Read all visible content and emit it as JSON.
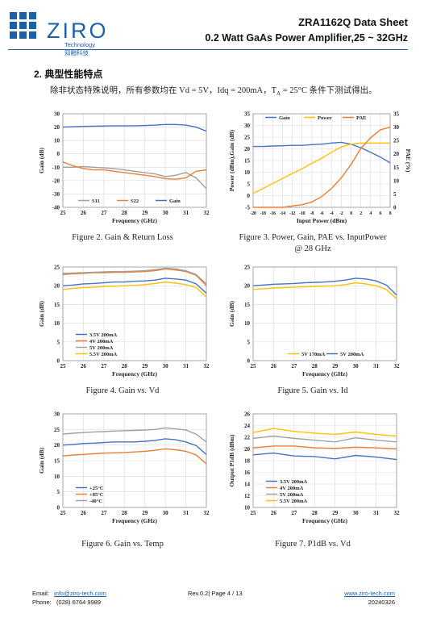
{
  "header": {
    "logo_text": "ZIRO",
    "logo_sub_en": "Technology",
    "logo_sub_cn": "知融科技",
    "title": "ZRA1162Q Data Sheet",
    "subtitle": "0.2 Watt GaAs Power Amplifier,25 ~ 32GHz",
    "brand_color": "#1f5fa8"
  },
  "section": {
    "title": "2.  典型性能特点",
    "intro": "除非状态特殊说明，所有参数均在 Vd = 5V，Idq = 200mA，T",
    "intro_sub": "A",
    "intro_tail": " = 25°C 条件下测试得出。"
  },
  "captions": {
    "fig2": "Figure 2. Gain & Return Loss",
    "fig3_line1": "Figure 3. Power, Gain, PAE vs. InputPower",
    "fig3_line2": "@ 28 GHz",
    "fig4": "Figure 4. Gain vs. Vd",
    "fig5": "Figure 5. Gain vs. Id",
    "fig6": "Figure 6. Gain vs. Temp",
    "fig7": "Figure 7. P1dB vs. Vd"
  },
  "footer": {
    "email_label": "Email:",
    "email": "info@ziro-tech.com",
    "phone_label": "Phone:",
    "phone": "(028) 6764 9989",
    "page": "Rev.0.2| Page 4 / 13",
    "website": "www.ziro-tech.com",
    "date": "20240326"
  },
  "chart_data": [
    {
      "id": "fig2",
      "type": "line",
      "xlabel": "Frequency (GHz)",
      "ylabel": "Gain (dB)",
      "xlim": [
        25,
        32
      ],
      "ylim": [
        -40,
        30
      ],
      "xticks": [
        25,
        26,
        27,
        28,
        29,
        30,
        31,
        32
      ],
      "yticks": [
        -40,
        -30,
        -20,
        -10,
        0,
        10,
        20,
        30
      ],
      "grid": true,
      "legend_position": "bottom",
      "series": [
        {
          "name": "S11",
          "color": "#a0a0a0",
          "x": [
            25,
            25.5,
            26,
            26.5,
            27,
            27.5,
            28,
            28.5,
            29,
            29.5,
            30,
            30.5,
            31,
            31.5,
            32
          ],
          "y": [
            -10,
            -10,
            -9.5,
            -10,
            -10.5,
            -11,
            -12,
            -13,
            -14,
            -15,
            -17,
            -16,
            -14,
            -18,
            -26
          ]
        },
        {
          "name": "S22",
          "color": "#ed7d31",
          "x": [
            25,
            25.5,
            26,
            26.5,
            27,
            27.5,
            28,
            28.5,
            29,
            29.5,
            30,
            30.5,
            31,
            31.5,
            32
          ],
          "y": [
            -6,
            -9,
            -11,
            -12,
            -12,
            -13,
            -14,
            -15,
            -16,
            -17,
            -18.5,
            -19,
            -18,
            -13,
            -12
          ]
        },
        {
          "name": "Gain",
          "color": "#4472c4",
          "x": [
            25,
            25.5,
            26,
            26.5,
            27,
            27.5,
            28,
            28.5,
            29,
            29.5,
            30,
            30.5,
            31,
            31.5,
            32
          ],
          "y": [
            20,
            20.3,
            20.5,
            20.7,
            20.8,
            21,
            21,
            21,
            21.2,
            21.5,
            22,
            22,
            21.5,
            20,
            17
          ]
        }
      ]
    },
    {
      "id": "fig3",
      "type": "line",
      "xlabel": "Input Power (dBm)",
      "ylabel": "Power (dBm),Gain (dB)",
      "y2label": "PAE (%)",
      "xlim": [
        -20,
        8
      ],
      "ylim": [
        -5,
        35
      ],
      "y2lim": [
        0,
        35
      ],
      "xticks": [
        -20,
        -18,
        -16,
        -14,
        -12,
        -10,
        -8,
        -6,
        -4,
        -2,
        0,
        2,
        4,
        6,
        8
      ],
      "yticks": [
        -5,
        0,
        5,
        10,
        15,
        20,
        25,
        30,
        35
      ],
      "y2ticks": [
        0,
        5,
        10,
        15,
        20,
        25,
        30,
        35
      ],
      "grid": true,
      "legend_position": "top",
      "series": [
        {
          "name": "Gain",
          "color": "#4472c4",
          "axis": "left",
          "x": [
            -20,
            -18,
            -16,
            -14,
            -12,
            -10,
            -8,
            -6,
            -4,
            -2,
            0,
            2,
            4,
            6,
            8
          ],
          "y": [
            21,
            21,
            21.2,
            21.3,
            21.5,
            21.5,
            21.8,
            22,
            22.5,
            22.8,
            22,
            20.5,
            18.5,
            16.5,
            14
          ]
        },
        {
          "name": "Power",
          "color": "#ffc000",
          "axis": "left",
          "x": [
            -20,
            -18,
            -16,
            -14,
            -12,
            -10,
            -8,
            -6,
            -4,
            -2,
            0,
            2,
            4,
            6,
            8
          ],
          "y": [
            1,
            3,
            5.2,
            7.3,
            9.5,
            11.5,
            13.8,
            16,
            18.5,
            20.8,
            22,
            22.5,
            22.5,
            22.5,
            22.5
          ]
        },
        {
          "name": "PAE",
          "color": "#ed7d31",
          "axis": "right",
          "x": [
            -20,
            -18,
            -16,
            -14,
            -12,
            -10,
            -8,
            -6,
            -4,
            -2,
            0,
            2,
            4,
            6,
            8
          ],
          "y": [
            0,
            0,
            0,
            0,
            0.5,
            1,
            2,
            4,
            7,
            11,
            16,
            22,
            26,
            29,
            30
          ]
        }
      ]
    },
    {
      "id": "fig4",
      "type": "line",
      "xlabel": "Frequency (GHz)",
      "ylabel": "Gain (dB)",
      "xlim": [
        25,
        32
      ],
      "ylim": [
        0,
        25
      ],
      "xticks": [
        25,
        26,
        27,
        28,
        29,
        30,
        31,
        32
      ],
      "yticks": [
        0,
        5,
        10,
        15,
        20,
        25
      ],
      "grid": true,
      "legend_position": "bottom-left",
      "series": [
        {
          "name": "3.5V 200mA",
          "color": "#4472c4",
          "x": [
            25,
            25.5,
            26,
            26.5,
            27,
            27.5,
            28,
            28.5,
            29,
            29.5,
            30,
            30.5,
            31,
            31.5,
            32
          ],
          "y": [
            20,
            20.2,
            20.5,
            20.6,
            20.8,
            21,
            21,
            21.2,
            21.3,
            21.5,
            22,
            21.8,
            21.5,
            20.5,
            18
          ]
        },
        {
          "name": "4V    200mA",
          "color": "#ed7d31",
          "x": [
            25,
            25.5,
            26,
            26.5,
            27,
            27.5,
            28,
            28.5,
            29,
            29.5,
            30,
            30.5,
            31,
            31.5,
            32
          ],
          "y": [
            23,
            23.2,
            23.3,
            23.5,
            23.5,
            23.6,
            23.6,
            23.7,
            23.8,
            24,
            24.5,
            24.2,
            23.8,
            22.8,
            20
          ]
        },
        {
          "name": "5V    200mA",
          "color": "#a0a0a0",
          "x": [
            25,
            25.5,
            26,
            26.5,
            27,
            27.5,
            28,
            28.5,
            29,
            29.5,
            30,
            30.5,
            31,
            31.5,
            32
          ],
          "y": [
            23.3,
            23.4,
            23.5,
            23.6,
            23.7,
            23.8,
            23.8,
            23.9,
            24,
            24.3,
            24.7,
            24.5,
            24,
            23,
            20.5
          ]
        },
        {
          "name": "5.5V 200mA",
          "color": "#ffc000",
          "x": [
            25,
            25.5,
            26,
            26.5,
            27,
            27.5,
            28,
            28.5,
            29,
            29.5,
            30,
            30.5,
            31,
            31.5,
            32
          ],
          "y": [
            19,
            19.3,
            19.5,
            19.6,
            19.8,
            19.9,
            20,
            20.1,
            20.3,
            20.6,
            21,
            20.7,
            20.3,
            19.5,
            17
          ]
        }
      ]
    },
    {
      "id": "fig5",
      "type": "line",
      "xlabel": "Frequency (GHz)",
      "ylabel": "Gain (dB)",
      "xlim": [
        25,
        32
      ],
      "ylim": [
        0,
        25
      ],
      "xticks": [
        25,
        26,
        27,
        28,
        29,
        30,
        31,
        32
      ],
      "yticks": [
        0,
        5,
        10,
        15,
        20,
        25
      ],
      "grid": true,
      "legend_position": "bottom",
      "series": [
        {
          "name": "5V 170mA",
          "color": "#ffc000",
          "x": [
            25,
            25.5,
            26,
            26.5,
            27,
            27.5,
            28,
            28.5,
            29,
            29.5,
            30,
            30.5,
            31,
            31.5,
            32
          ],
          "y": [
            19,
            19.2,
            19.4,
            19.5,
            19.6,
            19.7,
            19.8,
            19.9,
            20,
            20.3,
            20.8,
            20.5,
            20,
            19,
            16.5
          ]
        },
        {
          "name": "5V 200mA",
          "color": "#4472c4",
          "x": [
            25,
            25.5,
            26,
            26.5,
            27,
            27.5,
            28,
            28.5,
            29,
            29.5,
            30,
            30.5,
            31,
            31.5,
            32
          ],
          "y": [
            20,
            20.2,
            20.4,
            20.5,
            20.6,
            20.8,
            20.9,
            21,
            21.2,
            21.5,
            22,
            21.8,
            21.3,
            20.2,
            17.5
          ]
        }
      ]
    },
    {
      "id": "fig6",
      "type": "line",
      "xlabel": "Frequency (GHz)",
      "ylabel": "Gain (dB)",
      "xlim": [
        25,
        32
      ],
      "ylim": [
        0,
        30
      ],
      "xticks": [
        25,
        26,
        27,
        28,
        29,
        30,
        31,
        32
      ],
      "yticks": [
        0,
        5,
        10,
        15,
        20,
        25,
        30
      ],
      "grid": true,
      "legend_position": "bottom-left",
      "series": [
        {
          "name": "+25°C",
          "color": "#4472c4",
          "x": [
            25,
            25.5,
            26,
            26.5,
            27,
            27.5,
            28,
            28.5,
            29,
            29.5,
            30,
            30.5,
            31,
            31.5,
            32
          ],
          "y": [
            20,
            20.2,
            20.5,
            20.6,
            20.8,
            21,
            21,
            21,
            21.2,
            21.5,
            22,
            21.7,
            21,
            19.8,
            17
          ]
        },
        {
          "name": "+85°C",
          "color": "#ed7d31",
          "x": [
            25,
            25.5,
            26,
            26.5,
            27,
            27.5,
            28,
            28.5,
            29,
            29.5,
            30,
            30.5,
            31,
            31.5,
            32
          ],
          "y": [
            16.5,
            16.8,
            17,
            17.2,
            17.4,
            17.5,
            17.6,
            17.8,
            18,
            18.3,
            18.8,
            18.5,
            18,
            16.8,
            14
          ]
        },
        {
          "name": "-40°C",
          "color": "#a0a0a0",
          "x": [
            25,
            25.5,
            26,
            26.5,
            27,
            27.5,
            28,
            28.5,
            29,
            29.5,
            30,
            30.5,
            31,
            31.5,
            32
          ],
          "y": [
            23.5,
            23.8,
            24,
            24.2,
            24.3,
            24.5,
            24.6,
            24.7,
            24.8,
            25,
            25.5,
            25.2,
            24.8,
            23.5,
            21
          ]
        }
      ]
    },
    {
      "id": "fig7",
      "type": "line",
      "xlabel": "Frequency (GHz)",
      "ylabel": "Output P1dB (dBm)",
      "xlim": [
        25,
        32
      ],
      "ylim": [
        10,
        26
      ],
      "xticks": [
        25,
        26,
        27,
        28,
        29,
        30,
        31,
        32
      ],
      "yticks": [
        10,
        12,
        14,
        16,
        18,
        20,
        22,
        24,
        26
      ],
      "grid": true,
      "legend_position": "bottom-left",
      "series": [
        {
          "name": "3.5V 200mA",
          "color": "#4472c4",
          "x": [
            25,
            26,
            27,
            28,
            29,
            30,
            31,
            32
          ],
          "y": [
            19,
            19.3,
            18.8,
            18.7,
            18.3,
            18.9,
            18.6,
            18.2
          ]
        },
        {
          "name": "4V    200mA",
          "color": "#ed7d31",
          "x": [
            25,
            26,
            27,
            28,
            29,
            30,
            31,
            32
          ],
          "y": [
            20.2,
            20.5,
            20.5,
            20.2,
            20.1,
            20.3,
            20.2,
            20
          ]
        },
        {
          "name": "5V    200mA",
          "color": "#a0a0a0",
          "x": [
            25,
            26,
            27,
            28,
            29,
            30,
            31,
            32
          ],
          "y": [
            21.8,
            22.2,
            21.8,
            21.5,
            21.2,
            21.9,
            21.5,
            21.2
          ]
        },
        {
          "name": "5.5V 200mA",
          "color": "#ffc000",
          "x": [
            25,
            26,
            27,
            28,
            29,
            30,
            31,
            32
          ],
          "y": [
            22.8,
            23.5,
            23,
            22.7,
            22.5,
            22.9,
            22.5,
            22.2
          ]
        }
      ]
    }
  ]
}
